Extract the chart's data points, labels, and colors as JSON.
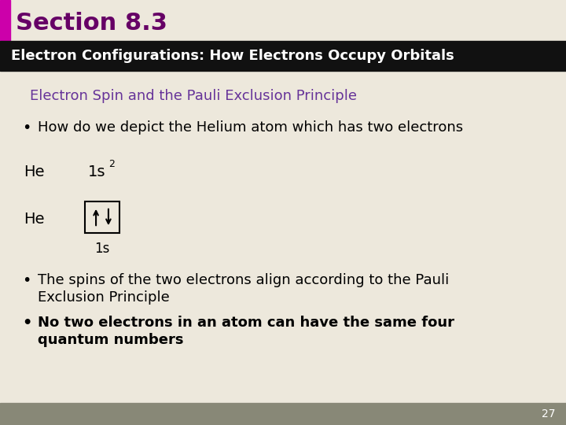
{
  "bg_color": "#ede8dc",
  "section_bar_color": "#cc00aa",
  "section_title": "Section 8.3",
  "section_title_color": "#660066",
  "header_bg_color": "#111111",
  "header_text": "Electron Configurations: How Electrons Occupy Orbitals",
  "header_text_color": "#ffffff",
  "subtitle": "Electron Spin and the Pauli Exclusion Principle",
  "subtitle_color": "#663399",
  "bullet1": "How do we depict the Helium atom which has two electrons",
  "he_label1": "He",
  "he_config": "1s",
  "he_super": "2",
  "he_label2": "He",
  "orbital_label": "1s",
  "page_num": "27",
  "footer_color": "#888877"
}
